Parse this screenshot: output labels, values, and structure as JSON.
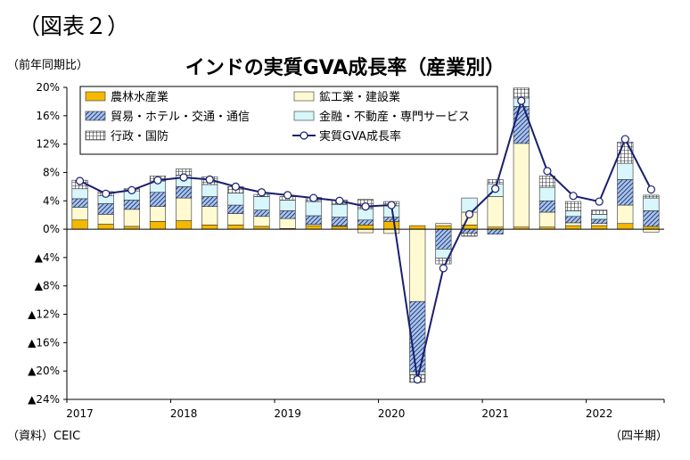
{
  "header": {
    "figure_label": "（図表２）",
    "y_unit": "（前年同期比）",
    "source": "（資料）CEIC",
    "x_unit": "（四半期）"
  },
  "colors": {
    "agriculture": "#f5b800",
    "industry": "#fffad2",
    "trade": "#a9c6e3",
    "finance": "#d8f6fb",
    "public": "#ffffff",
    "line": "#1a1f6e"
  },
  "chart_data": {
    "type": "bar",
    "title": "インドの実質GVA成長率（産業別）",
    "xlabel": "",
    "ylabel": "",
    "ylim": [
      -24,
      20
    ],
    "yticks": [
      20,
      16,
      12,
      8,
      4,
      0,
      -4,
      -8,
      -12,
      -16,
      -20,
      -24
    ],
    "ytick_labels": [
      "20%",
      "16%",
      "12%",
      "8%",
      "4%",
      "0%",
      "▲4%",
      "▲8%",
      "▲12%",
      "▲16%",
      "▲20%",
      "▲24%"
    ],
    "year_labels": [
      "2017",
      "2018",
      "2019",
      "2020",
      "2021",
      "2022"
    ],
    "categories": [
      "2017Q1",
      "2017Q2",
      "2017Q3",
      "2017Q4",
      "2018Q1",
      "2018Q2",
      "2018Q3",
      "2018Q4",
      "2019Q1",
      "2019Q2",
      "2019Q3",
      "2019Q4",
      "2020Q1",
      "2020Q2",
      "2020Q3",
      "2020Q4",
      "2021Q1",
      "2021Q2",
      "2021Q3",
      "2021Q4",
      "2022Q1",
      "2022Q2",
      "2022Q3"
    ],
    "stacked": true,
    "series": [
      {
        "name": "農林水産業",
        "kind": "bar",
        "color_key": "agriculture",
        "pattern": "solid",
        "values": [
          1.3,
          0.7,
          0.4,
          1.1,
          1.2,
          0.6,
          0.6,
          0.4,
          0.1,
          0.5,
          0.4,
          0.6,
          1.1,
          0.5,
          0.5,
          0.6,
          0.3,
          0.3,
          0.3,
          0.5,
          0.5,
          0.8,
          0.4
        ]
      },
      {
        "name": "鉱工業・建設業",
        "kind": "bar",
        "color_key": "industry",
        "pattern": "plain",
        "values": [
          1.8,
          1.4,
          2.4,
          2.1,
          3.2,
          2.6,
          1.6,
          1.4,
          1.4,
          0.2,
          0.1,
          -0.5,
          -0.6,
          -10.2,
          0.3,
          1.8,
          4.3,
          11.8,
          2.1,
          0.4,
          0.3,
          2.6,
          -0.4
        ]
      },
      {
        "name": "貿易・ホテル・交通・通信",
        "kind": "bar",
        "color_key": "trade",
        "pattern": "hatch",
        "values": [
          1.2,
          1.5,
          1.3,
          2.0,
          1.6,
          1.4,
          1.2,
          0.9,
          1.1,
          1.2,
          1.2,
          0.7,
          0.6,
          -9.9,
          -2.8,
          -0.6,
          -0.7,
          5.2,
          1.6,
          0.9,
          0.6,
          3.6,
          2.2
        ]
      },
      {
        "name": "金融・不動産・専門サービス",
        "kind": "bar",
        "color_key": "finance",
        "pattern": "plain",
        "values": [
          1.4,
          1.1,
          1.3,
          1.6,
          1.6,
          1.7,
          1.7,
          1.9,
          1.5,
          2.0,
          1.8,
          1.6,
          1.6,
          -0.4,
          -1.3,
          2.0,
          1.8,
          1.2,
          1.9,
          0.8,
          0.7,
          2.3,
          1.8
        ]
      },
      {
        "name": "行政・国防",
        "kind": "bar",
        "color_key": "public",
        "pattern": "grid",
        "values": [
          1.2,
          0.6,
          0.3,
          0.7,
          0.9,
          1.1,
          0.9,
          0.3,
          0.5,
          0.6,
          0.6,
          1.3,
          0.6,
          -1.1,
          -0.8,
          -0.4,
          0.6,
          1.4,
          1.6,
          1.3,
          0.6,
          3.0,
          0.4
        ]
      },
      {
        "name": "実質GVA成長率",
        "kind": "line",
        "color_key": "line",
        "marker": "circle",
        "values": [
          6.8,
          5.0,
          5.5,
          6.9,
          7.3,
          7.0,
          6.0,
          5.2,
          4.8,
          4.4,
          4.0,
          3.2,
          3.4,
          -21.2,
          -5.5,
          2.1,
          5.7,
          18.1,
          8.2,
          4.7,
          3.9,
          12.7,
          5.6
        ]
      }
    ],
    "grid": false,
    "legend": "top"
  }
}
